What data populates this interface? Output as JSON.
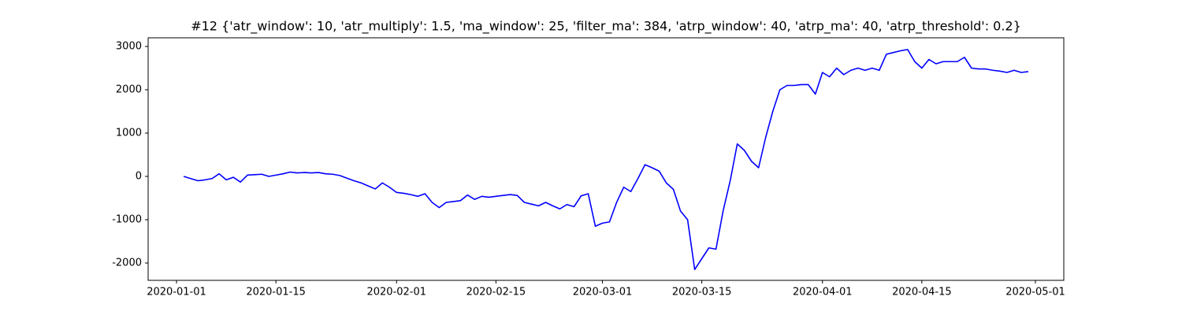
{
  "chart_data": {
    "type": "line",
    "title": "#12 {'atr_window': 10, 'atr_multiply': 1.5, 'ma_window': 25, 'filter_ma': 384, 'atrp_window': 40, 'atrp_ma': 40, 'atrp_threshold': 0.2}",
    "x": [
      "2020-01-02",
      "2020-01-03",
      "2020-01-04",
      "2020-01-05",
      "2020-01-06",
      "2020-01-07",
      "2020-01-08",
      "2020-01-09",
      "2020-01-10",
      "2020-01-11",
      "2020-01-12",
      "2020-01-13",
      "2020-01-14",
      "2020-01-15",
      "2020-01-16",
      "2020-01-17",
      "2020-01-18",
      "2020-01-19",
      "2020-01-20",
      "2020-01-21",
      "2020-01-22",
      "2020-01-23",
      "2020-01-24",
      "2020-01-25",
      "2020-01-26",
      "2020-01-27",
      "2020-01-28",
      "2020-01-29",
      "2020-01-30",
      "2020-01-31",
      "2020-02-01",
      "2020-02-02",
      "2020-02-03",
      "2020-02-04",
      "2020-02-05",
      "2020-02-06",
      "2020-02-07",
      "2020-02-08",
      "2020-02-09",
      "2020-02-10",
      "2020-02-11",
      "2020-02-12",
      "2020-02-13",
      "2020-02-14",
      "2020-02-15",
      "2020-02-16",
      "2020-02-17",
      "2020-02-18",
      "2020-02-19",
      "2020-02-20",
      "2020-02-21",
      "2020-02-22",
      "2020-02-23",
      "2020-02-24",
      "2020-02-25",
      "2020-02-26",
      "2020-02-27",
      "2020-02-28",
      "2020-02-29",
      "2020-03-01",
      "2020-03-02",
      "2020-03-03",
      "2020-03-04",
      "2020-03-05",
      "2020-03-06",
      "2020-03-07",
      "2020-03-08",
      "2020-03-09",
      "2020-03-10",
      "2020-03-11",
      "2020-03-12",
      "2020-03-13",
      "2020-03-14",
      "2020-03-15",
      "2020-03-16",
      "2020-03-17",
      "2020-03-18",
      "2020-03-19",
      "2020-03-20",
      "2020-03-21",
      "2020-03-22",
      "2020-03-23",
      "2020-03-24",
      "2020-03-25",
      "2020-03-26",
      "2020-03-27",
      "2020-03-28",
      "2020-03-29",
      "2020-03-30",
      "2020-03-31",
      "2020-04-01",
      "2020-04-02",
      "2020-04-03",
      "2020-04-04",
      "2020-04-05",
      "2020-04-06",
      "2020-04-07",
      "2020-04-08",
      "2020-04-09",
      "2020-04-10",
      "2020-04-11",
      "2020-04-12",
      "2020-04-13",
      "2020-04-14",
      "2020-04-15",
      "2020-04-16",
      "2020-04-17",
      "2020-04-18",
      "2020-04-19",
      "2020-04-20",
      "2020-04-21",
      "2020-04-22",
      "2020-04-23",
      "2020-04-24",
      "2020-04-25",
      "2020-04-26",
      "2020-04-27",
      "2020-04-28",
      "2020-04-29",
      "2020-04-30"
    ],
    "series": [
      {
        "color": "#0000ff",
        "values": [
          0,
          -50,
          -100,
          -80,
          -50,
          60,
          -80,
          -20,
          -130,
          30,
          40,
          50,
          0,
          30,
          60,
          100,
          80,
          90,
          80,
          90,
          60,
          50,
          20,
          -40,
          -100,
          -150,
          -220,
          -290,
          -150,
          -250,
          -370,
          -390,
          -420,
          -460,
          -400,
          -600,
          -720,
          -600,
          -580,
          -560,
          -430,
          -530,
          -460,
          -480,
          -460,
          -440,
          -420,
          -440,
          -600,
          -640,
          -680,
          -600,
          -680,
          -750,
          -650,
          -700,
          -450,
          -400,
          -1150,
          -1080,
          -1050,
          -600,
          -250,
          -350,
          -50,
          270,
          200,
          120,
          -150,
          -300,
          -800,
          -1000,
          -2150,
          -1900,
          -1650,
          -1680,
          -800,
          -100,
          750,
          600,
          350,
          200,
          900,
          1500,
          2000,
          2100,
          2100,
          2120,
          2120,
          1900,
          2400,
          2300,
          2500,
          2350,
          2450,
          2500,
          2450,
          2500,
          2450,
          2820,
          2860,
          2900,
          2930,
          2650,
          2500,
          2700,
          2600,
          2650,
          2650,
          2650,
          2750,
          2500,
          2480,
          2480,
          2450,
          2430,
          2400,
          2450,
          2400,
          2420
        ]
      }
    ],
    "xlim": [
      "2019-12-28",
      "2020-05-05"
    ],
    "xticks": [
      "2020-01-01",
      "2020-01-15",
      "2020-02-01",
      "2020-02-15",
      "2020-03-01",
      "2020-03-15",
      "2020-04-01",
      "2020-04-15",
      "2020-05-01"
    ],
    "ylim": [
      -2400,
      3200
    ],
    "yticks": [
      -2000,
      -1000,
      0,
      1000,
      2000,
      3000
    ],
    "grid": false
  }
}
